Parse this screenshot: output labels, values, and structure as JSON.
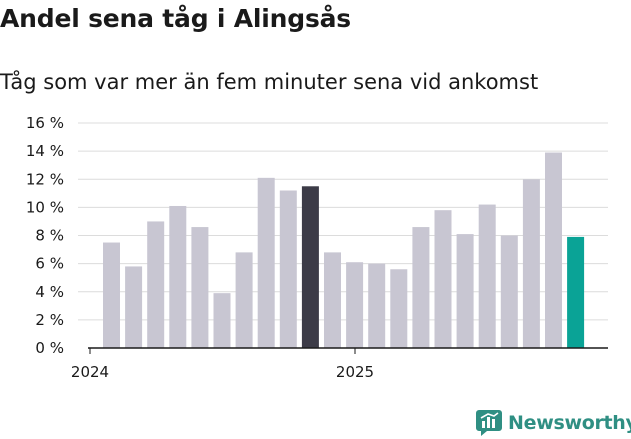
{
  "title": "Andel sena tåg i Alingsås",
  "subtitle": "Tåg som var mer än fem minuter sena vid ankomst",
  "brand": {
    "name": "Newsworthy",
    "color": "#2f8f83"
  },
  "colors": {
    "default_bar": "#c8c6d2",
    "highlight_bar": "#3c3b47",
    "latest_bar": "#0aa396",
    "grid": "#dcdcdc",
    "axis": "#1a1a1a"
  },
  "chart_data": {
    "type": "bar",
    "title": "Andel sena tåg i Alingsås",
    "subtitle": "Tåg som var mer än fem minuter sena vid ankomst",
    "xlabel": "",
    "ylabel": "",
    "ylim": [
      0,
      16
    ],
    "yticks": [
      0,
      2,
      4,
      6,
      8,
      10,
      12,
      14,
      16
    ],
    "ytick_suffix": " %",
    "grid": true,
    "xtick_labels": [
      {
        "label": "2024",
        "position": 0
      },
      {
        "label": "2025",
        "position": 12
      }
    ],
    "values": [
      7.5,
      5.8,
      9.0,
      10.1,
      8.6,
      3.9,
      6.8,
      12.1,
      11.2,
      11.5,
      6.8,
      6.1,
      6.0,
      5.6,
      8.6,
      9.8,
      8.1,
      10.2,
      8.0,
      12.0,
      13.9,
      7.9
    ],
    "bar_roles": [
      "default",
      "default",
      "default",
      "default",
      "default",
      "default",
      "default",
      "default",
      "default",
      "highlight",
      "default",
      "default",
      "default",
      "default",
      "default",
      "default",
      "default",
      "default",
      "default",
      "default",
      "default",
      "latest"
    ]
  }
}
